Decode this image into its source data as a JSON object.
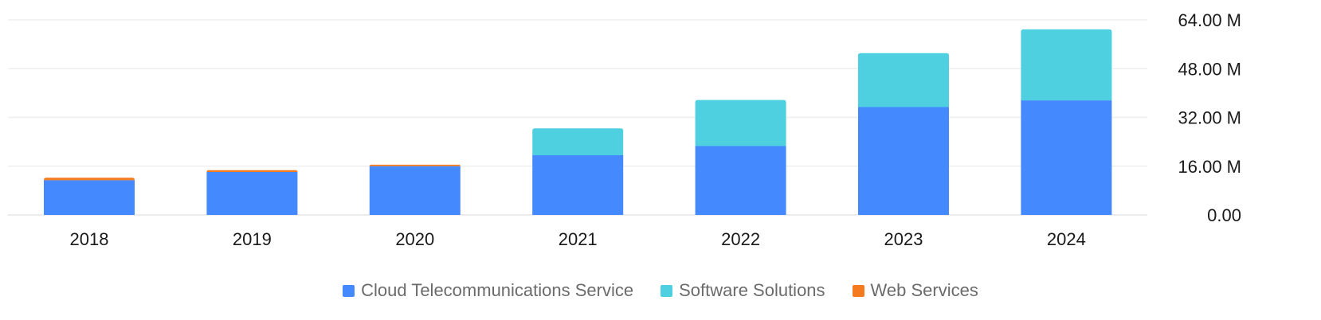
{
  "chart_data": {
    "type": "bar",
    "stacked": true,
    "categories": [
      "2018",
      "2019",
      "2020",
      "2021",
      "2022",
      "2023",
      "2024"
    ],
    "series": [
      {
        "name": "Cloud Telecommunications Service",
        "color": "#4589ff",
        "values": [
          11.4,
          14.1,
          16.0,
          19.6,
          22.6,
          35.4,
          37.6
        ]
      },
      {
        "name": "Software Solutions",
        "color": "#4ed0e0",
        "values": [
          0,
          0,
          0,
          8.8,
          15.1,
          17.7,
          23.3
        ]
      },
      {
        "name": "Web Services",
        "color": "#f47b20",
        "values": [
          0.8,
          0.6,
          0.5,
          0,
          0,
          0,
          0
        ]
      }
    ],
    "ylim": [
      0,
      64
    ],
    "yticks": [
      0,
      16,
      32,
      48,
      64
    ],
    "ytick_labels": [
      "0.00",
      "16.00 M",
      "32.00 M",
      "48.00 M",
      "64.00 M"
    ],
    "yaxis_position": "right",
    "grid": true,
    "legend_position": "bottom"
  }
}
